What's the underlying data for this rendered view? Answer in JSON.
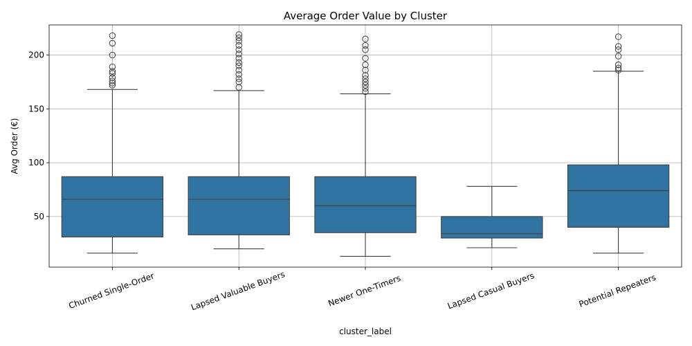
{
  "chart_data": {
    "type": "box",
    "title": "Average Order Value by Cluster",
    "xlabel": "cluster_label",
    "ylabel": "Avg Order (€)",
    "ylim": [
      3,
      228
    ],
    "yticks": [
      50,
      100,
      150,
      200
    ],
    "grid": true,
    "box_color": "#3274a1",
    "categories": [
      "Churned Single-Order",
      "Lapsed Valuable Buyers",
      "Newer One-Timers",
      "Lapsed Casual Buyers",
      "Potential Repeaters"
    ],
    "boxes": [
      {
        "whisker_low": 16,
        "q1": 31,
        "median": 66,
        "q3": 87,
        "whisker_high": 168,
        "outliers": [
          172,
          174,
          176,
          179,
          183,
          185,
          189,
          200,
          211,
          218
        ]
      },
      {
        "whisker_low": 20,
        "q1": 33,
        "median": 66,
        "q3": 87,
        "whisker_high": 167,
        "outliers": [
          170,
          175,
          178,
          182,
          186,
          190,
          193,
          197,
          201,
          205,
          209,
          213,
          216,
          219
        ]
      },
      {
        "whisker_low": 13,
        "q1": 35,
        "median": 60,
        "q3": 87,
        "whisker_high": 164,
        "outliers": [
          166,
          169,
          172,
          175,
          178,
          181,
          186,
          191,
          197,
          205,
          209,
          215
        ]
      },
      {
        "whisker_low": 21,
        "q1": 30,
        "median": 34,
        "q3": 50,
        "whisker_high": 78,
        "outliers": []
      },
      {
        "whisker_low": 16,
        "q1": 40,
        "median": 74,
        "q3": 98,
        "whisker_high": 185,
        "outliers": [
          186,
          188,
          191,
          199,
          205,
          208,
          217
        ]
      }
    ]
  }
}
